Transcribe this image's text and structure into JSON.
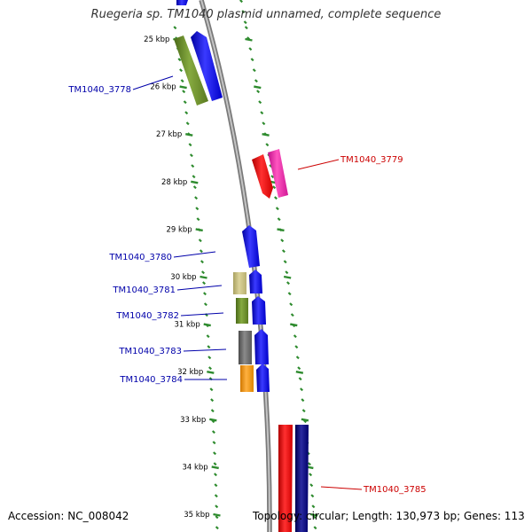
{
  "title": "Ruegeria sp. TM1040 plasmid unnamed, complete sequence",
  "footer": {
    "accession": "Accession: NC_008042",
    "topology": "Topology: circular; Length: 130,973 bp; Genes: 113"
  },
  "colors": {
    "ticks": "#2e8b2e",
    "backbone": "#8a8a8a",
    "label_blue": "#0000aa",
    "label_red": "#cc0000"
  },
  "scale": {
    "ticks": [
      {
        "kbp": 25,
        "label": "25 kbp"
      },
      {
        "kbp": 26,
        "label": "26 kbp"
      },
      {
        "kbp": 27,
        "label": "27 kbp"
      },
      {
        "kbp": 28,
        "label": "28 kbp"
      },
      {
        "kbp": 29,
        "label": "29 kbp"
      },
      {
        "kbp": 30,
        "label": "30 kbp"
      },
      {
        "kbp": 31,
        "label": "31 kbp"
      },
      {
        "kbp": 32,
        "label": "32 kbp"
      },
      {
        "kbp": 33,
        "label": "33 kbp"
      },
      {
        "kbp": 34,
        "label": "34 kbp"
      },
      {
        "kbp": 35,
        "label": "35 kbp"
      }
    ]
  },
  "gene_labels": [
    {
      "name": "TM1040_3778",
      "color": "#0000aa"
    },
    {
      "name": "TM1040_3779",
      "color": "#cc0000"
    },
    {
      "name": "TM1040_3780",
      "color": "#0000aa"
    },
    {
      "name": "TM1040_3781",
      "color": "#0000aa"
    },
    {
      "name": "TM1040_3782",
      "color": "#0000aa"
    },
    {
      "name": "TM1040_3783",
      "color": "#0000aa"
    },
    {
      "name": "TM1040_3784",
      "color": "#0000aa"
    },
    {
      "name": "TM1040_3785",
      "color": "#cc0000"
    }
  ]
}
